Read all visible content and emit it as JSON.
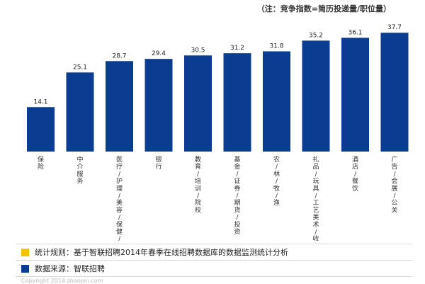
{
  "note": "（注：竞争指数=简历投递量/职位量）",
  "chart_data": {
    "type": "bar",
    "title": "",
    "xlabel": "",
    "ylabel": "",
    "ylim": [
      0,
      40
    ],
    "grid": false,
    "legend": "none",
    "bar_color": "#0a3d91",
    "categories": [
      "保险",
      "中介服务",
      "医疗/护理/美容/保健/卫生服务",
      "银行",
      "教育/培训/院校",
      "基金/证券/期货/投资",
      "农/林/牧/渔",
      "礼品/玩具/工艺美术/收藏品/奢侈品",
      "酒店/餐饮",
      "广告/会展/公关"
    ],
    "values": [
      14.1,
      25.1,
      28.7,
      29.4,
      30.5,
      31.2,
      31.8,
      35.2,
      36.1,
      37.7
    ]
  },
  "legend": [
    {
      "color": "#f5c400",
      "text": "统计规则：基于智联招聘2014年春季在线招聘数据库的数据监测统计分析"
    },
    {
      "color": "#0a3d91",
      "text": "数据来源：智联招聘"
    }
  ],
  "footer": "Copyright 2014 zhaopin.com"
}
